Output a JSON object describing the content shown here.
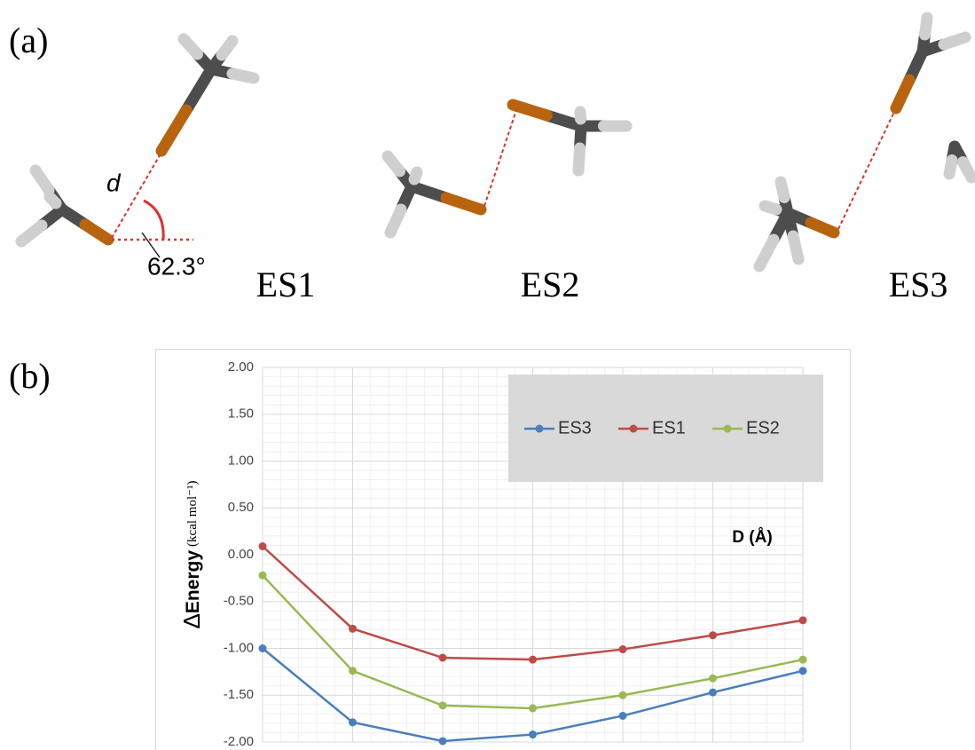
{
  "panels": [
    {
      "label": "(a)",
      "structures": [
        {
          "label": "ES1"
        },
        {
          "label": "ES2"
        },
        {
          "label": "ES3"
        }
      ],
      "distance_label": "d",
      "angle_label": "62.3°"
    },
    {
      "label": "(b)"
    }
  ],
  "chart_data": {
    "type": "line",
    "ylabel_symbol": "Δ",
    "ylabel": "Energy",
    "ylabel_unit": "(kcal mol⁻¹)",
    "annotation": "D (Å)",
    "categories": [
      null,
      null,
      null,
      null,
      null,
      null,
      null
    ],
    "series": [
      {
        "name": "ES3",
        "color": "#4a7ebb",
        "values": [
          -1.0,
          -1.79,
          -1.99,
          -1.92,
          -1.72,
          -1.47,
          -1.24
        ]
      },
      {
        "name": "ES1",
        "color": "#be4b48",
        "values": [
          0.09,
          -0.79,
          -1.1,
          -1.12,
          -1.01,
          -0.86,
          -0.7
        ]
      },
      {
        "name": "ES2",
        "color": "#98b954",
        "values": [
          -0.22,
          -1.24,
          -1.61,
          -1.64,
          -1.5,
          -1.32,
          -1.12
        ]
      }
    ],
    "ylim": [
      -2,
      2
    ],
    "yticks": [
      {
        "value": -2,
        "label": "-2.00"
      },
      {
        "value": -1.5,
        "label": "-1.50"
      },
      {
        "value": -1,
        "label": "-1.00"
      },
      {
        "value": -0.5,
        "label": "-0.50"
      },
      {
        "value": 0,
        "label": "0.00"
      },
      {
        "value": 0.5,
        "label": "0.50"
      },
      {
        "value": 1,
        "label": "1.00"
      },
      {
        "value": 1.5,
        "label": "1.50"
      },
      {
        "value": 2,
        "label": "2.00"
      }
    ],
    "grid": true,
    "legend": "top-right"
  }
}
